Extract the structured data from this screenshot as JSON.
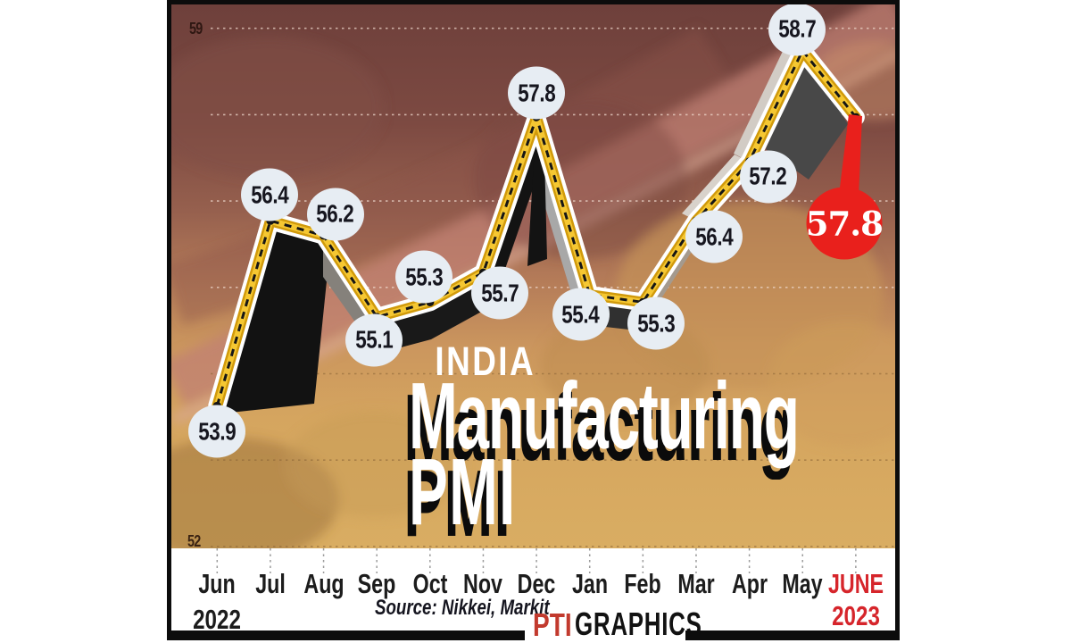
{
  "poster": {
    "y_axis_top": "59",
    "y_axis_bottom": "52",
    "badge": "INDIA",
    "title_line1": "Manufacturing",
    "title_line2": "PMI",
    "source": "Source: Nikkei, Markit",
    "logo_pti": "PTI",
    "logo_graphics": "GRAPHICS",
    "year_start": "2022",
    "year_end": "2023"
  },
  "chart_data": {
    "type": "line",
    "title": "India Manufacturing PMI",
    "categories": [
      "Jun",
      "Jul",
      "Aug",
      "Sep",
      "Oct",
      "Nov",
      "Dec",
      "Jan",
      "Feb",
      "Mar",
      "Apr",
      "May",
      "JUNE"
    ],
    "values": [
      53.9,
      56.4,
      56.2,
      55.1,
      55.3,
      55.7,
      57.8,
      55.4,
      55.3,
      56.4,
      57.2,
      58.7,
      57.8
    ],
    "start_label": "Jun 2022",
    "end_label": "JUNE 2023",
    "ylim": [
      52,
      59
    ],
    "ylabel": "",
    "xlabel": "",
    "grid": true,
    "source": "Nikkei, Markit",
    "highlight_last": true,
    "line_color": "#f5c732",
    "line_edge_color": "#d19a0b",
    "dash_color": "#161616",
    "halo_color": "#ffffff",
    "bubble_color": "#e7edf3",
    "bubble_text_color": "#16161f",
    "highlight_color": "#e9201c",
    "badge_color": "#c9293f",
    "accent_red": "#d6252b"
  }
}
